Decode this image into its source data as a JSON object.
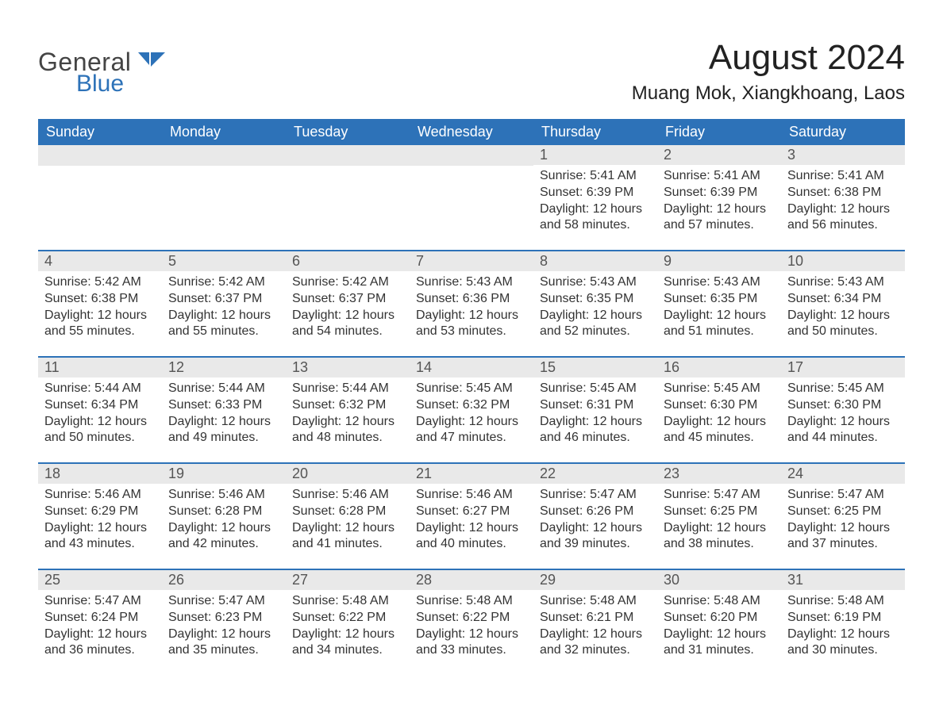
{
  "colors": {
    "brand_blue": "#2d72b8",
    "header_text": "#ffffff",
    "daynum_bg": "#e9e9e9",
    "body_text": "#333333",
    "page_bg": "#ffffff"
  },
  "typography": {
    "title_fontsize_pt": 33,
    "subtitle_fontsize_pt": 18,
    "dow_fontsize_pt": 14,
    "body_fontsize_pt": 12
  },
  "logo": {
    "word1": "General",
    "word2": "Blue"
  },
  "title": "August 2024",
  "subtitle": "Muang Mok, Xiangkhoang, Laos",
  "days_of_week": [
    "Sunday",
    "Monday",
    "Tuesday",
    "Wednesday",
    "Thursday",
    "Friday",
    "Saturday"
  ],
  "calendar": {
    "structure": "month-grid",
    "leading_blanks": 4,
    "weeks": [
      [
        null,
        null,
        null,
        null,
        {
          "n": "1",
          "sunrise": "Sunrise: 5:41 AM",
          "sunset": "Sunset: 6:39 PM",
          "daylight": "Daylight: 12 hours and 58 minutes."
        },
        {
          "n": "2",
          "sunrise": "Sunrise: 5:41 AM",
          "sunset": "Sunset: 6:39 PM",
          "daylight": "Daylight: 12 hours and 57 minutes."
        },
        {
          "n": "3",
          "sunrise": "Sunrise: 5:41 AM",
          "sunset": "Sunset: 6:38 PM",
          "daylight": "Daylight: 12 hours and 56 minutes."
        }
      ],
      [
        {
          "n": "4",
          "sunrise": "Sunrise: 5:42 AM",
          "sunset": "Sunset: 6:38 PM",
          "daylight": "Daylight: 12 hours and 55 minutes."
        },
        {
          "n": "5",
          "sunrise": "Sunrise: 5:42 AM",
          "sunset": "Sunset: 6:37 PM",
          "daylight": "Daylight: 12 hours and 55 minutes."
        },
        {
          "n": "6",
          "sunrise": "Sunrise: 5:42 AM",
          "sunset": "Sunset: 6:37 PM",
          "daylight": "Daylight: 12 hours and 54 minutes."
        },
        {
          "n": "7",
          "sunrise": "Sunrise: 5:43 AM",
          "sunset": "Sunset: 6:36 PM",
          "daylight": "Daylight: 12 hours and 53 minutes."
        },
        {
          "n": "8",
          "sunrise": "Sunrise: 5:43 AM",
          "sunset": "Sunset: 6:35 PM",
          "daylight": "Daylight: 12 hours and 52 minutes."
        },
        {
          "n": "9",
          "sunrise": "Sunrise: 5:43 AM",
          "sunset": "Sunset: 6:35 PM",
          "daylight": "Daylight: 12 hours and 51 minutes."
        },
        {
          "n": "10",
          "sunrise": "Sunrise: 5:43 AM",
          "sunset": "Sunset: 6:34 PM",
          "daylight": "Daylight: 12 hours and 50 minutes."
        }
      ],
      [
        {
          "n": "11",
          "sunrise": "Sunrise: 5:44 AM",
          "sunset": "Sunset: 6:34 PM",
          "daylight": "Daylight: 12 hours and 50 minutes."
        },
        {
          "n": "12",
          "sunrise": "Sunrise: 5:44 AM",
          "sunset": "Sunset: 6:33 PM",
          "daylight": "Daylight: 12 hours and 49 minutes."
        },
        {
          "n": "13",
          "sunrise": "Sunrise: 5:44 AM",
          "sunset": "Sunset: 6:32 PM",
          "daylight": "Daylight: 12 hours and 48 minutes."
        },
        {
          "n": "14",
          "sunrise": "Sunrise: 5:45 AM",
          "sunset": "Sunset: 6:32 PM",
          "daylight": "Daylight: 12 hours and 47 minutes."
        },
        {
          "n": "15",
          "sunrise": "Sunrise: 5:45 AM",
          "sunset": "Sunset: 6:31 PM",
          "daylight": "Daylight: 12 hours and 46 minutes."
        },
        {
          "n": "16",
          "sunrise": "Sunrise: 5:45 AM",
          "sunset": "Sunset: 6:30 PM",
          "daylight": "Daylight: 12 hours and 45 minutes."
        },
        {
          "n": "17",
          "sunrise": "Sunrise: 5:45 AM",
          "sunset": "Sunset: 6:30 PM",
          "daylight": "Daylight: 12 hours and 44 minutes."
        }
      ],
      [
        {
          "n": "18",
          "sunrise": "Sunrise: 5:46 AM",
          "sunset": "Sunset: 6:29 PM",
          "daylight": "Daylight: 12 hours and 43 minutes."
        },
        {
          "n": "19",
          "sunrise": "Sunrise: 5:46 AM",
          "sunset": "Sunset: 6:28 PM",
          "daylight": "Daylight: 12 hours and 42 minutes."
        },
        {
          "n": "20",
          "sunrise": "Sunrise: 5:46 AM",
          "sunset": "Sunset: 6:28 PM",
          "daylight": "Daylight: 12 hours and 41 minutes."
        },
        {
          "n": "21",
          "sunrise": "Sunrise: 5:46 AM",
          "sunset": "Sunset: 6:27 PM",
          "daylight": "Daylight: 12 hours and 40 minutes."
        },
        {
          "n": "22",
          "sunrise": "Sunrise: 5:47 AM",
          "sunset": "Sunset: 6:26 PM",
          "daylight": "Daylight: 12 hours and 39 minutes."
        },
        {
          "n": "23",
          "sunrise": "Sunrise: 5:47 AM",
          "sunset": "Sunset: 6:25 PM",
          "daylight": "Daylight: 12 hours and 38 minutes."
        },
        {
          "n": "24",
          "sunrise": "Sunrise: 5:47 AM",
          "sunset": "Sunset: 6:25 PM",
          "daylight": "Daylight: 12 hours and 37 minutes."
        }
      ],
      [
        {
          "n": "25",
          "sunrise": "Sunrise: 5:47 AM",
          "sunset": "Sunset: 6:24 PM",
          "daylight": "Daylight: 12 hours and 36 minutes."
        },
        {
          "n": "26",
          "sunrise": "Sunrise: 5:47 AM",
          "sunset": "Sunset: 6:23 PM",
          "daylight": "Daylight: 12 hours and 35 minutes."
        },
        {
          "n": "27",
          "sunrise": "Sunrise: 5:48 AM",
          "sunset": "Sunset: 6:22 PM",
          "daylight": "Daylight: 12 hours and 34 minutes."
        },
        {
          "n": "28",
          "sunrise": "Sunrise: 5:48 AM",
          "sunset": "Sunset: 6:22 PM",
          "daylight": "Daylight: 12 hours and 33 minutes."
        },
        {
          "n": "29",
          "sunrise": "Sunrise: 5:48 AM",
          "sunset": "Sunset: 6:21 PM",
          "daylight": "Daylight: 12 hours and 32 minutes."
        },
        {
          "n": "30",
          "sunrise": "Sunrise: 5:48 AM",
          "sunset": "Sunset: 6:20 PM",
          "daylight": "Daylight: 12 hours and 31 minutes."
        },
        {
          "n": "31",
          "sunrise": "Sunrise: 5:48 AM",
          "sunset": "Sunset: 6:19 PM",
          "daylight": "Daylight: 12 hours and 30 minutes."
        }
      ]
    ]
  }
}
